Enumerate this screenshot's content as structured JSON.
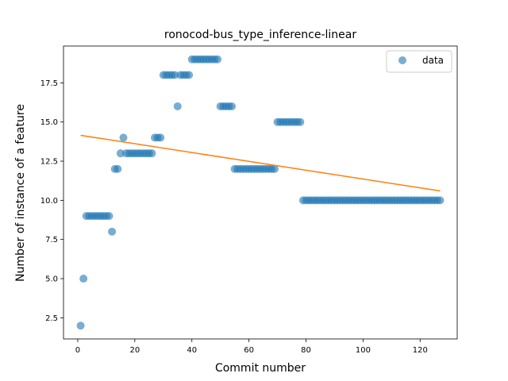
{
  "chart_data": {
    "type": "scatter",
    "title": "ronocod-bus_type_inference-linear",
    "xlabel": "Commit number",
    "ylabel": "Number of instance of a feature",
    "xlim": [
      -5,
      133
    ],
    "ylim": [
      1.15,
      19.85
    ],
    "xticks": [
      0,
      20,
      40,
      60,
      80,
      100,
      120
    ],
    "xtick_labels": [
      "0",
      "20",
      "40",
      "60",
      "80",
      "100",
      "120"
    ],
    "yticks": [
      2.5,
      5.0,
      7.5,
      10.0,
      12.5,
      15.0,
      17.5
    ],
    "ytick_labels": [
      "2.5",
      "5.0",
      "7.5",
      "10.0",
      "12.5",
      "15.0",
      "17.5"
    ],
    "grid": false,
    "legend": {
      "position": "top-right",
      "entries": [
        "data"
      ]
    },
    "colors": {
      "data": "#1f77b4",
      "fit": "#ff7f0e"
    },
    "series": [
      {
        "name": "data",
        "kind": "scatter",
        "x": [
          1,
          2,
          3,
          4,
          5,
          6,
          7,
          8,
          9,
          10,
          11,
          12,
          13,
          14,
          15,
          16,
          17,
          18,
          19,
          20,
          21,
          22,
          23,
          24,
          25,
          26,
          27,
          28,
          29,
          30,
          31,
          32,
          33,
          34,
          35,
          36,
          37,
          38,
          39,
          40,
          41,
          42,
          43,
          44,
          45,
          46,
          47,
          48,
          49,
          50,
          51,
          52,
          53,
          54,
          55,
          56,
          57,
          58,
          59,
          60,
          61,
          62,
          63,
          64,
          65,
          66,
          67,
          68,
          69,
          70,
          71,
          72,
          73,
          74,
          75,
          76,
          77,
          78,
          79,
          80,
          81,
          82,
          83,
          84,
          85,
          86,
          87,
          88,
          89,
          90,
          91,
          92,
          93,
          94,
          95,
          96,
          97,
          98,
          99,
          100,
          101,
          102,
          103,
          104,
          105,
          106,
          107,
          108,
          109,
          110,
          111,
          112,
          113,
          114,
          115,
          116,
          117,
          118,
          119,
          120,
          121,
          122,
          123,
          124,
          125,
          126,
          127
        ],
        "y": [
          2,
          5,
          9,
          9,
          9,
          9,
          9,
          9,
          9,
          9,
          9,
          8,
          12,
          12,
          13,
          14,
          13,
          13,
          13,
          13,
          13,
          13,
          13,
          13,
          13,
          13,
          14,
          14,
          14,
          18,
          18,
          18,
          18,
          18,
          16,
          18,
          18,
          18,
          18,
          19,
          19,
          19,
          19,
          19,
          19,
          19,
          19,
          19,
          19,
          16,
          16,
          16,
          16,
          16,
          12,
          12,
          12,
          12,
          12,
          12,
          12,
          12,
          12,
          12,
          12,
          12,
          12,
          12,
          12,
          15,
          15,
          15,
          15,
          15,
          15,
          15,
          15,
          15,
          10,
          10,
          10,
          10,
          10,
          10,
          10,
          10,
          10,
          10,
          10,
          10,
          10,
          10,
          10,
          10,
          10,
          10,
          10,
          10,
          10,
          10,
          10,
          10,
          10,
          10,
          10,
          10,
          10,
          10,
          10,
          10,
          10,
          10,
          10,
          10,
          10,
          10,
          10,
          10,
          10,
          10,
          10,
          10,
          10,
          10,
          10,
          10,
          10
        ]
      },
      {
        "name": "",
        "kind": "line",
        "x": [
          1,
          127
        ],
        "y": [
          14.15,
          10.6
        ]
      }
    ]
  }
}
